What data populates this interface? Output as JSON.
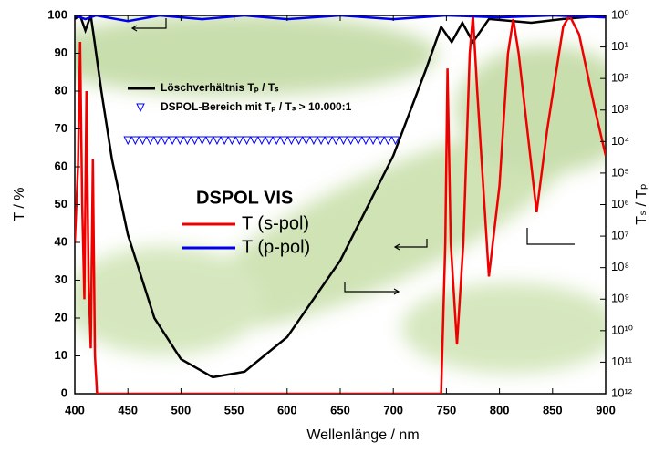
{
  "chart_data": {
    "type": "line",
    "xlabel": "Wellenlänge / nm",
    "ylabel": "T / %",
    "y2label": "Tₛ / Tₚ",
    "legend_title": "DSPOL VIS",
    "xlim": [
      400,
      900
    ],
    "xticks": [
      400,
      450,
      500,
      550,
      600,
      650,
      700,
      750,
      800,
      850,
      900
    ],
    "ylim": [
      0,
      100
    ],
    "yticks": [
      0,
      10,
      20,
      30,
      40,
      50,
      60,
      70,
      80,
      90,
      100
    ],
    "y2log": true,
    "y2lim": [
      1000000000000,
      1
    ],
    "y2ticks": [
      {
        "value": 1,
        "label": "10⁰"
      },
      {
        "value": 10,
        "label": "10¹"
      },
      {
        "value": 100,
        "label": "10²"
      },
      {
        "value": 1000,
        "label": "10³"
      },
      {
        "value": 10000,
        "label": "10⁴"
      },
      {
        "value": 100000,
        "label": "10⁵"
      },
      {
        "value": 1000000,
        "label": "10⁶"
      },
      {
        "value": 10000000,
        "label": "10⁷"
      },
      {
        "value": 100000000,
        "label": "10⁸"
      },
      {
        "value": 1000000000,
        "label": "10⁹"
      },
      {
        "value": 10000000000,
        "label": "10¹⁰"
      },
      {
        "value": 100000000000,
        "label": "10¹¹"
      },
      {
        "value": 1000000000000,
        "label": "10¹²"
      }
    ],
    "series": [
      {
        "name": "Löschverhältnis Tₚ / Tₛ",
        "color": "#000000",
        "axis": "y2",
        "x": [
          400,
          405,
          410,
          415,
          418,
          425,
          435,
          450,
          475,
          500,
          530,
          560,
          600,
          650,
          700,
          730,
          745,
          755,
          765,
          775,
          790,
          830,
          860,
          900
        ],
        "values": [
          1.3,
          1,
          3,
          1,
          5,
          250,
          36000,
          9000000,
          4000000000,
          80000000000,
          300000000000,
          200000000000,
          16000000000,
          60000000,
          28000,
          60,
          2.3,
          7,
          1.7,
          7,
          1.3,
          1.7,
          1.3,
          1
        ]
      },
      {
        "name": "DSPOL-Bereich mit Tₚ / Tₛ > 10.000:1",
        "color": "#0000ff",
        "marker": "triangle-down",
        "x": [
          450,
          457,
          464,
          471,
          478,
          485,
          492,
          499,
          506,
          513,
          520,
          527,
          534,
          541,
          548,
          555,
          562,
          569,
          576,
          583,
          590,
          597,
          604,
          611,
          618,
          625,
          632,
          639,
          646,
          653,
          660,
          667,
          674,
          681,
          688,
          695,
          702
        ],
        "values": [
          67,
          67,
          67,
          67,
          67,
          67,
          67,
          67,
          67,
          67,
          67,
          67,
          67,
          67,
          67,
          67,
          67,
          67,
          67,
          67,
          67,
          67,
          67,
          67,
          67,
          67,
          67,
          67,
          67,
          67,
          67,
          67,
          67,
          67,
          67,
          67,
          67
        ]
      },
      {
        "name": "T (s-pol)",
        "color": "#ee0000",
        "x": [
          400,
          403,
          405,
          407,
          409,
          411,
          413,
          415,
          417,
          419,
          421,
          745,
          749,
          751,
          754,
          760,
          766,
          772,
          775,
          779,
          790,
          800,
          808,
          813,
          818,
          835,
          845,
          860,
          866,
          875,
          890,
          900
        ],
        "values": [
          40,
          60,
          93,
          50,
          25,
          80,
          30,
          12,
          62,
          10,
          0,
          0,
          40,
          86,
          40,
          13,
          40,
          90,
          100,
          80,
          31,
          55,
          90,
          99,
          90,
          48,
          70,
          97,
          100,
          95,
          75,
          63
        ]
      },
      {
        "name": "T (p-pol)",
        "color": "#0000ee",
        "x": [
          400,
          410,
          420,
          450,
          480,
          520,
          560,
          600,
          650,
          700,
          750,
          800,
          850,
          900
        ],
        "values": [
          100,
          99,
          100,
          98.5,
          100,
          99,
          100,
          99,
          100,
          99,
          100,
          99.5,
          100,
          99.5
        ]
      }
    ]
  }
}
